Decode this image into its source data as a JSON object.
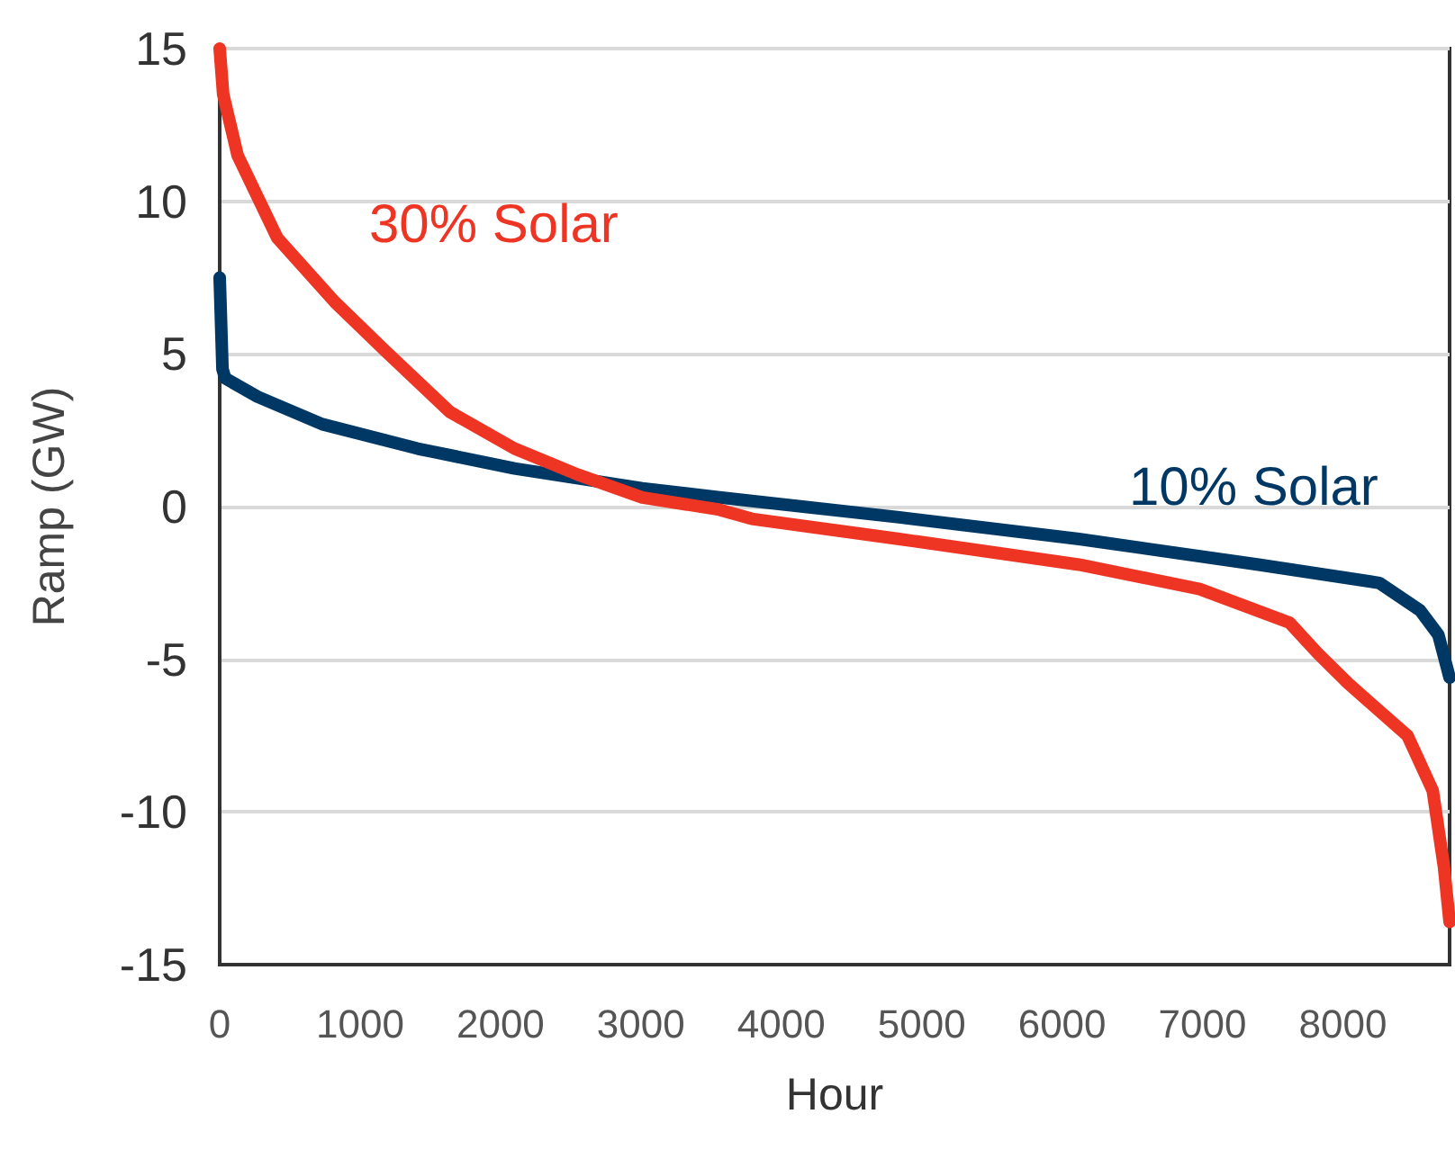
{
  "chart_data": {
    "type": "line",
    "xlabel": "Hour",
    "ylabel": "Ramp (GW)",
    "xlim": [
      0,
      8760
    ],
    "xticks": [
      0,
      1000,
      2000,
      3000,
      4000,
      5000,
      6000,
      7000,
      8000
    ],
    "ylim": [
      -15,
      15
    ],
    "yticks": [
      -15,
      -10,
      -5,
      0,
      5,
      10,
      15
    ],
    "grid": "y",
    "legend": false,
    "line_style": "solid",
    "series": [
      {
        "name": "30% Solar",
        "color": "#ee3524",
        "x": [
          0,
          25,
          128,
          410,
          820,
          1180,
          1640,
          2100,
          2550,
          3010,
          3560,
          3790,
          4840,
          6120,
          6980,
          7620,
          7820,
          8040,
          8460,
          8640,
          8720,
          8760
        ],
        "values": [
          15,
          13.5,
          11.5,
          8.8,
          6.7,
          5.1,
          3.1,
          1.9,
          1.05,
          0.3,
          -0.1,
          -0.4,
          -1.06,
          -1.9,
          -2.7,
          -3.8,
          -4.8,
          -5.8,
          -7.5,
          -9.3,
          -11.8,
          -13.6
        ]
      },
      {
        "name": "10% Solar",
        "color": "#003865",
        "x": [
          0,
          20,
          40,
          270,
          730,
          1410,
          2100,
          3010,
          3560,
          4840,
          6120,
          7400,
          8260,
          8550,
          8680,
          8760
        ],
        "values": [
          7.5,
          4.5,
          4.2,
          3.6,
          2.7,
          1.9,
          1.25,
          0.6,
          0.3,
          -0.35,
          -1.06,
          -1.9,
          -2.5,
          -3.4,
          -4.2,
          -5.6
        ]
      }
    ]
  }
}
